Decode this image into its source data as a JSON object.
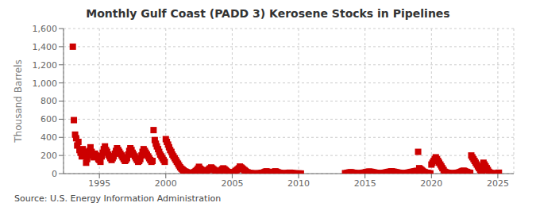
{
  "chart_data": {
    "type": "scatter",
    "title": "Monthly Gulf Coast (PADD 3) Kerosene Stocks in Pipelines",
    "ylabel": "Thousand Barrels",
    "annotations": [
      "Source: U.S. Energy Information Administration"
    ],
    "color": "#cc0000",
    "marker": "square",
    "grid": true,
    "xlim": [
      1992.3,
      2026.2
    ],
    "xticks": [
      1995,
      2000,
      2005,
      2010,
      2015,
      2020,
      2025
    ],
    "ylim": [
      0,
      1600
    ],
    "yticks": [
      0,
      200,
      400,
      600,
      800,
      {
        "value": 1000,
        "label": "1,000"
      },
      {
        "value": 1200,
        "label": "1,200"
      },
      {
        "value": 1400,
        "label": "1,400"
      },
      {
        "value": 1600,
        "label": "1,600"
      }
    ],
    "x": [
      1993.0,
      1993.08,
      1993.17,
      1993.25,
      1993.33,
      1993.42,
      1993.5,
      1993.58,
      1993.67,
      1993.75,
      1993.83,
      1993.92,
      1994.0,
      1994.08,
      1994.17,
      1994.25,
      1994.33,
      1994.42,
      1994.5,
      1994.58,
      1994.67,
      1994.75,
      1994.83,
      1994.92,
      1995.0,
      1995.08,
      1995.17,
      1995.25,
      1995.33,
      1995.42,
      1995.5,
      1995.58,
      1995.67,
      1995.75,
      1995.83,
      1995.92,
      1996.0,
      1996.08,
      1996.17,
      1996.25,
      1996.33,
      1996.42,
      1996.5,
      1996.58,
      1996.67,
      1996.75,
      1996.83,
      1996.92,
      1997.0,
      1997.08,
      1997.17,
      1997.25,
      1997.33,
      1997.42,
      1997.5,
      1997.58,
      1997.67,
      1997.75,
      1997.83,
      1997.92,
      1998.0,
      1998.08,
      1998.17,
      1998.25,
      1998.33,
      1998.42,
      1998.5,
      1998.58,
      1998.67,
      1998.75,
      1998.83,
      1998.92,
      1999.0,
      1999.08,
      1999.17,
      1999.25,
      1999.33,
      1999.42,
      1999.5,
      1999.58,
      1999.67,
      1999.75,
      1999.83,
      1999.92,
      2000.0,
      2000.08,
      2000.17,
      2000.25,
      2000.33,
      2000.42,
      2000.5,
      2000.58,
      2000.67,
      2000.75,
      2000.83,
      2000.92,
      2001.0,
      2001.08,
      2001.17,
      2001.25,
      2001.33,
      2001.42,
      2001.5,
      2001.58,
      2001.67,
      2001.75,
      2001.83,
      2001.92,
      2002.0,
      2002.08,
      2002.17,
      2002.25,
      2002.33,
      2002.42,
      2002.5,
      2002.58,
      2002.67,
      2002.75,
      2002.83,
      2002.92,
      2003.0,
      2003.08,
      2003.17,
      2003.25,
      2003.33,
      2003.42,
      2003.5,
      2003.58,
      2003.67,
      2003.75,
      2003.83,
      2003.92,
      2004.0,
      2004.08,
      2004.17,
      2004.25,
      2004.33,
      2004.42,
      2004.5,
      2004.58,
      2004.67,
      2004.75,
      2004.83,
      2004.92,
      2005.0,
      2005.08,
      2005.17,
      2005.25,
      2005.33,
      2005.42,
      2005.5,
      2005.58,
      2005.67,
      2005.75,
      2005.83,
      2005.92,
      2006.0,
      2006.08,
      2006.17,
      2006.25,
      2006.33,
      2006.42,
      2006.5,
      2006.58,
      2006.67,
      2006.75,
      2006.83,
      2006.92,
      2007.0,
      2007.08,
      2007.17,
      2007.25,
      2007.33,
      2007.42,
      2007.5,
      2007.58,
      2007.67,
      2007.75,
      2007.83,
      2007.92,
      2008.0,
      2008.08,
      2008.17,
      2008.25,
      2008.33,
      2008.42,
      2008.5,
      2008.58,
      2008.67,
      2008.75,
      2008.83,
      2008.92,
      2009.0,
      2009.08,
      2009.17,
      2009.25,
      2009.33,
      2009.42,
      2009.5,
      2009.58,
      2009.67,
      2009.75,
      2009.83,
      2009.92,
      2010.0,
      2010.08,
      2010.17,
      2013.5,
      2013.67,
      2013.75,
      2013.83,
      2013.92,
      2014.0,
      2014.08,
      2014.17,
      2014.25,
      2014.33,
      2014.42,
      2014.5,
      2014.58,
      2014.67,
      2014.75,
      2014.83,
      2014.92,
      2015.0,
      2015.08,
      2015.17,
      2015.25,
      2015.33,
      2015.42,
      2015.5,
      2015.58,
      2015.67,
      2015.75,
      2015.83,
      2015.92,
      2016.0,
      2016.08,
      2016.17,
      2016.25,
      2016.33,
      2016.42,
      2016.5,
      2016.58,
      2016.67,
      2016.75,
      2016.83,
      2016.92,
      2017.0,
      2017.08,
      2017.17,
      2017.25,
      2017.33,
      2017.42,
      2017.5,
      2017.58,
      2017.67,
      2017.75,
      2017.83,
      2017.92,
      2018.0,
      2018.08,
      2018.17,
      2018.25,
      2018.33,
      2018.42,
      2018.5,
      2018.58,
      2018.67,
      2018.75,
      2018.83,
      2018.92,
      2019.0,
      2019.08,
      2019.17,
      2019.25,
      2019.33,
      2019.42,
      2019.5,
      2019.58,
      2019.67,
      2019.75,
      2019.83,
      2019.92,
      2020.0,
      2020.08,
      2020.17,
      2020.25,
      2020.33,
      2020.42,
      2020.5,
      2020.58,
      2020.67,
      2020.75,
      2020.83,
      2020.92,
      2021.0,
      2021.08,
      2021.17,
      2021.25,
      2021.33,
      2021.42,
      2021.5,
      2021.58,
      2021.67,
      2021.75,
      2021.83,
      2021.92,
      2022.0,
      2022.08,
      2022.17,
      2022.25,
      2022.33,
      2022.42,
      2022.5,
      2022.58,
      2022.67,
      2022.75,
      2022.83,
      2022.92,
      2023.0,
      2023.08,
      2023.17,
      2023.25,
      2023.33,
      2023.42,
      2023.5,
      2023.58,
      2023.67,
      2023.75,
      2023.83,
      2023.92,
      2024.0,
      2024.08,
      2024.17,
      2024.25,
      2024.33,
      2024.42,
      2024.5,
      2024.58,
      2024.67,
      2024.75,
      2024.83,
      2024.92,
      2025.0,
      2025.08
    ],
    "values": [
      1400,
      590,
      430,
      390,
      310,
      350,
      260,
      230,
      190,
      270,
      240,
      200,
      120,
      160,
      210,
      250,
      290,
      240,
      200,
      180,
      220,
      200,
      190,
      160,
      150,
      130,
      190,
      230,
      270,
      300,
      260,
      240,
      210,
      190,
      170,
      150,
      170,
      190,
      220,
      250,
      280,
      260,
      240,
      220,
      200,
      180,
      160,
      140,
      150,
      170,
      210,
      250,
      280,
      260,
      230,
      210,
      190,
      170,
      150,
      130,
      140,
      160,
      200,
      240,
      270,
      250,
      230,
      210,
      190,
      170,
      150,
      130,
      140,
      480,
      370,
      330,
      300,
      270,
      240,
      210,
      190,
      170,
      150,
      130,
      380,
      350,
      320,
      290,
      260,
      240,
      210,
      190,
      170,
      150,
      130,
      110,
      90,
      70,
      55,
      45,
      35,
      25,
      20,
      15,
      10,
      8,
      5,
      3,
      8,
      12,
      18,
      28,
      38,
      55,
      75,
      55,
      45,
      35,
      25,
      18,
      22,
      28,
      38,
      48,
      58,
      68,
      58,
      48,
      38,
      28,
      18,
      13,
      18,
      28,
      38,
      48,
      58,
      48,
      38,
      28,
      18,
      13,
      8,
      5,
      8,
      13,
      18,
      28,
      38,
      48,
      58,
      78,
      68,
      58,
      48,
      38,
      28,
      18,
      13,
      8,
      5,
      3,
      2,
      2,
      1,
      1,
      1,
      1,
      2,
      3,
      5,
      8,
      10,
      15,
      20,
      25,
      20,
      15,
      10,
      8,
      10,
      15,
      20,
      25,
      20,
      15,
      10,
      8,
      5,
      3,
      2,
      1,
      2,
      3,
      5,
      8,
      10,
      8,
      5,
      3,
      2,
      1,
      1,
      1,
      1,
      1,
      1,
      5,
      8,
      10,
      12,
      15,
      12,
      10,
      8,
      5,
      3,
      2,
      2,
      2,
      3,
      5,
      8,
      10,
      12,
      15,
      18,
      20,
      22,
      20,
      18,
      15,
      12,
      10,
      8,
      5,
      3,
      2,
      2,
      3,
      5,
      8,
      10,
      12,
      15,
      18,
      20,
      22,
      25,
      22,
      20,
      18,
      15,
      12,
      10,
      8,
      5,
      3,
      2,
      2,
      3,
      5,
      8,
      10,
      12,
      15,
      18,
      20,
      22,
      25,
      28,
      30,
      240,
      60,
      50,
      40,
      30,
      20,
      15,
      10,
      8,
      5,
      3,
      2,
      100,
      120,
      140,
      160,
      180,
      160,
      140,
      120,
      100,
      80,
      60,
      40,
      20,
      15,
      10,
      8,
      5,
      3,
      2,
      2,
      2,
      3,
      5,
      8,
      10,
      12,
      18,
      22,
      28,
      32,
      28,
      22,
      18,
      12,
      10,
      8,
      200,
      180,
      160,
      140,
      120,
      100,
      80,
      60,
      40,
      20,
      10,
      120,
      100,
      80,
      60,
      40,
      20,
      10,
      5,
      3,
      2,
      1,
      1,
      1,
      5,
      10
    ]
  }
}
